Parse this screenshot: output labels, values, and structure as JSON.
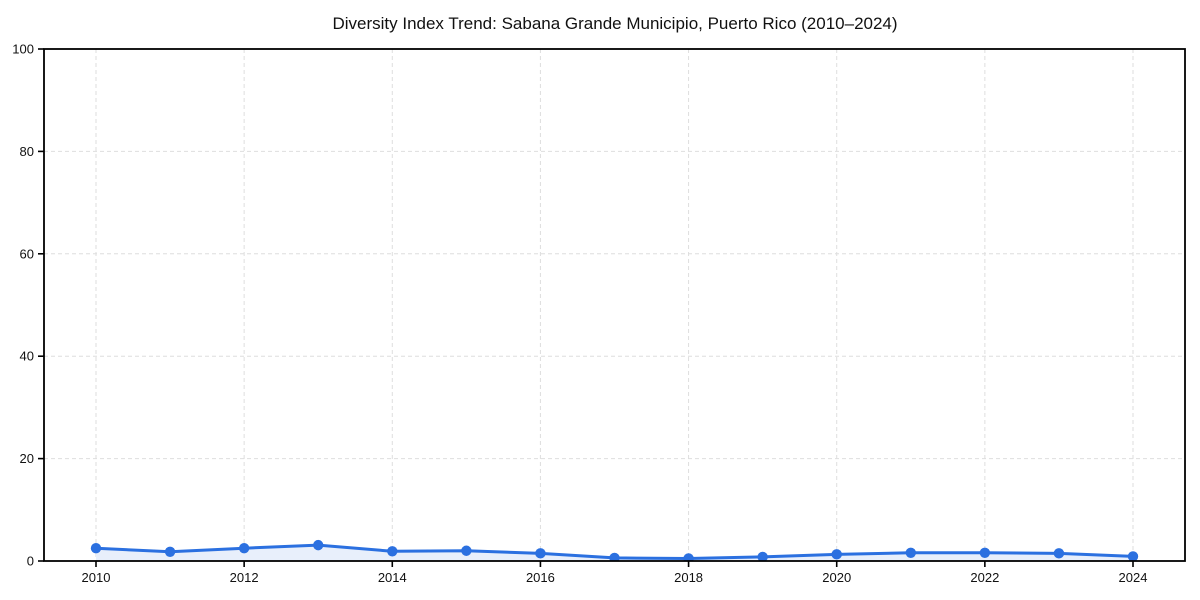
{
  "chart_data": {
    "type": "line",
    "title": "Diversity Index Trend: Sabana Grande Municipio, Puerto Rico (2010–2024)",
    "xlabel": "",
    "ylabel": "",
    "x": [
      2010,
      2011,
      2012,
      2013,
      2014,
      2015,
      2016,
      2017,
      2018,
      2019,
      2020,
      2021,
      2022,
      2023,
      2024
    ],
    "series": [
      {
        "name": "Diversity Index",
        "values": [
          2.5,
          1.8,
          2.5,
          3.1,
          1.9,
          2.0,
          1.5,
          0.6,
          0.5,
          0.8,
          1.3,
          1.6,
          1.6,
          1.5,
          0.9
        ]
      }
    ],
    "ylim": [
      0,
      100
    ],
    "yticks": [
      0,
      20,
      40,
      60,
      80,
      100
    ],
    "xticks": [
      2010,
      2012,
      2014,
      2016,
      2018,
      2020,
      2022,
      2024
    ],
    "grid": true,
    "legend": "none",
    "colors": {
      "line": "#2b70e0",
      "area_fill": "#e8effb",
      "grid": "#dedede",
      "spine": "#000000",
      "text": "#111111",
      "background": "#ffffff"
    }
  }
}
